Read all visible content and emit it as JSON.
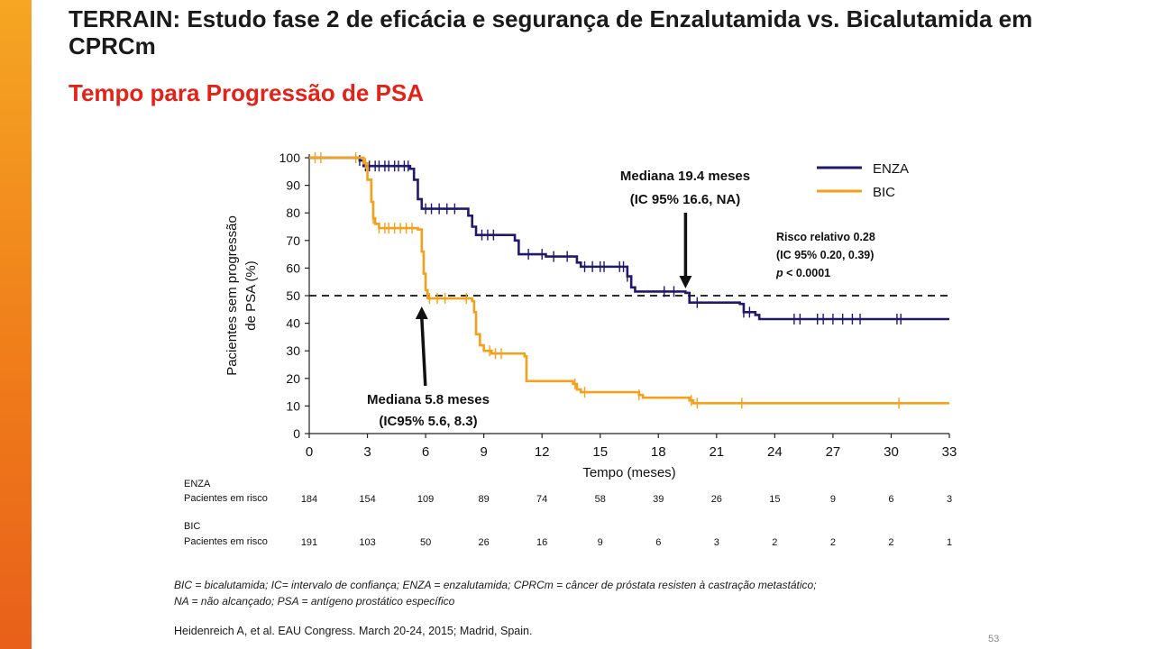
{
  "slide": {
    "title": "TERRAIN: Estudo fase 2 de eficácia e segurança de Enzalutamida vs. Bicalutamida em CPRCm",
    "subtitle": "Tempo para Progressão de PSA",
    "footnote_line1": "BIC = bicalutamida; IC= intervalo de confiança; ENZA = enzalutamida; CPRCm = câncer de próstata resisten à castração metastático;",
    "footnote_line2": "NA = não alcançado; PSA = antígeno prostático específico",
    "reference": "Heidenreich A, et al. EAU Congress. March 20-24, 2015; Madrid, Spain.",
    "page_number": "53"
  },
  "colors": {
    "accent": "#e2231a",
    "enza": "#1f1a6b",
    "bic": "#f5a01a",
    "side_bar": "#f07d1a"
  },
  "chart_data": {
    "type": "line",
    "xlabel": "Tempo (meses)",
    "ylabel_line1": "Pacientes sem progressão",
    "ylabel_line2": "de PSA (%)",
    "xlim": [
      0,
      33
    ],
    "ylim": [
      0,
      100
    ],
    "x_ticks": [
      0,
      3,
      6,
      9,
      12,
      15,
      18,
      21,
      24,
      27,
      30,
      33
    ],
    "y_ticks": [
      0,
      10,
      20,
      30,
      40,
      50,
      60,
      70,
      80,
      90,
      100
    ],
    "reference_line_y": 50,
    "series": [
      {
        "name": "ENZA",
        "color": "#1f1a6b",
        "steps": [
          [
            0,
            100
          ],
          [
            2.6,
            99
          ],
          [
            2.8,
            97
          ],
          [
            5.2,
            96
          ],
          [
            5.4,
            92
          ],
          [
            5.6,
            85
          ],
          [
            5.8,
            81.5
          ],
          [
            8.2,
            79
          ],
          [
            8.4,
            75
          ],
          [
            8.6,
            72
          ],
          [
            10.6,
            70
          ],
          [
            10.8,
            65
          ],
          [
            12.2,
            64.2
          ],
          [
            13.8,
            62
          ],
          [
            14.0,
            60.5
          ],
          [
            16.4,
            57
          ],
          [
            16.6,
            53
          ],
          [
            16.8,
            51.5
          ],
          [
            19.4,
            51
          ],
          [
            19.6,
            47.5
          ],
          [
            22.2,
            47
          ],
          [
            22.4,
            44
          ],
          [
            23.0,
            43
          ],
          [
            23.2,
            41.5
          ],
          [
            33,
            41.5
          ]
        ],
        "censor_x": [
          2.6,
          2.9,
          3.1,
          3.4,
          3.6,
          3.9,
          4.1,
          4.4,
          4.6,
          4.9,
          5.1,
          6.0,
          6.3,
          6.7,
          7.1,
          7.5,
          8.9,
          9.2,
          9.5,
          11.3,
          12.0,
          12.6,
          13.3,
          14.2,
          14.6,
          15.0,
          15.2,
          16.0,
          16.2,
          16.4,
          18.3,
          18.8,
          20.0,
          22.4,
          22.7,
          25.0,
          25.3,
          26.2,
          26.5,
          27.0,
          27.5,
          28.0,
          28.4,
          30.3,
          30.5
        ]
      },
      {
        "name": "BIC",
        "color": "#f5a01a",
        "steps": [
          [
            0,
            100
          ],
          [
            2.8,
            98
          ],
          [
            3.0,
            92
          ],
          [
            3.2,
            84
          ],
          [
            3.3,
            78
          ],
          [
            3.4,
            76
          ],
          [
            3.6,
            74.5
          ],
          [
            5.6,
            74
          ],
          [
            5.8,
            66
          ],
          [
            5.9,
            58
          ],
          [
            6.0,
            52
          ],
          [
            6.1,
            49
          ],
          [
            8.4,
            48
          ],
          [
            8.5,
            44
          ],
          [
            8.6,
            36
          ],
          [
            8.8,
            32
          ],
          [
            9.0,
            30
          ],
          [
            9.4,
            29
          ],
          [
            11.1,
            28
          ],
          [
            11.2,
            19
          ],
          [
            13.6,
            18
          ],
          [
            13.8,
            16
          ],
          [
            14.0,
            15
          ],
          [
            17.0,
            14
          ],
          [
            17.2,
            13
          ],
          [
            19.6,
            12
          ],
          [
            19.8,
            11
          ],
          [
            33,
            11
          ]
        ],
        "censor_x": [
          0.3,
          0.6,
          2.4,
          2.9,
          3.3,
          3.6,
          3.9,
          4.1,
          4.4,
          4.7,
          5.0,
          5.3,
          6.2,
          6.6,
          7.0,
          8.1,
          9.3,
          9.6,
          9.9,
          13.7,
          14.2,
          17.0,
          19.7,
          20.0,
          22.3,
          30.4
        ]
      }
    ],
    "annotations": {
      "enza_median_line1": "Mediana 19.4 meses",
      "enza_median_line2": "(IC 95% 16.6, NA)",
      "enza_median_x": 19.4,
      "bic_median_line1": "Mediana 5.8 meses",
      "bic_median_line2": "(IC95% 5.6, 8.3)",
      "bic_median_x": 5.8,
      "hr_line1": "Risco relativo 0.28",
      "hr_line2": "(IC 95% 0.20, 0.39)",
      "hr_p_label": "p",
      "hr_p_value": "< 0.0001"
    },
    "risk_table": {
      "rows": [
        {
          "group": "ENZA",
          "label": "Pacientes em risco",
          "values": [
            184,
            154,
            109,
            89,
            74,
            58,
            39,
            26,
            15,
            9,
            6,
            3
          ]
        },
        {
          "group": "BIC",
          "label": "Pacientes em risco",
          "values": [
            191,
            103,
            50,
            26,
            16,
            9,
            6,
            3,
            2,
            2,
            2,
            1
          ]
        }
      ]
    }
  }
}
